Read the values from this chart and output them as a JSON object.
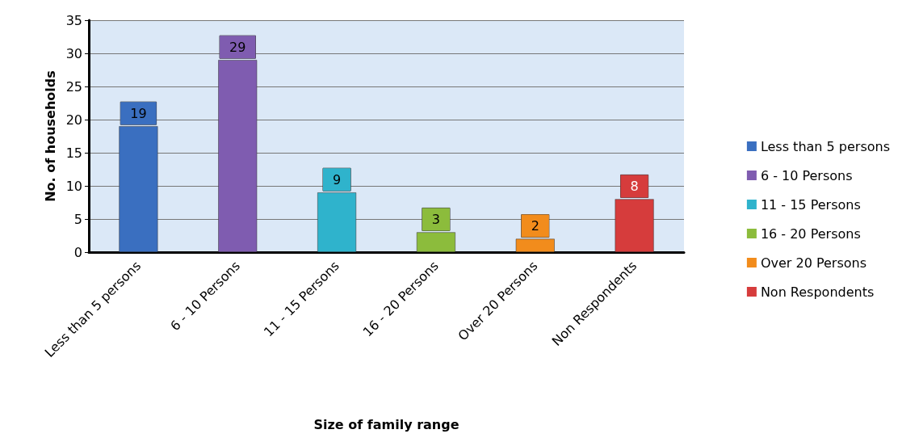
{
  "chart_data": {
    "type": "bar",
    "xlabel": "Size of family range",
    "ylabel": "No. of households",
    "categories": [
      "Less than 5 persons",
      "6 - 10 Persons",
      "11 - 15 Persons",
      "16 - 20 Persons",
      "Over 20 Persons",
      "Non Respondents"
    ],
    "series": [
      {
        "name": "Less than 5 persons",
        "color": "#3a6fc0",
        "values": [
          19,
          null,
          null,
          null,
          null,
          null
        ]
      },
      {
        "name": "6 - 10 Persons",
        "color": "#7f5cb0",
        "values": [
          null,
          29,
          null,
          null,
          null,
          null
        ]
      },
      {
        "name": "11 - 15 Persons",
        "color": "#2fb3cc",
        "values": [
          null,
          null,
          9,
          null,
          null,
          null
        ]
      },
      {
        "name": "16 - 20 Persons",
        "color": "#8cbc3c",
        "values": [
          null,
          null,
          null,
          3,
          null,
          null
        ]
      },
      {
        "name": "Over 20 Persons",
        "color": "#f28c1c",
        "values": [
          null,
          null,
          null,
          null,
          2,
          null
        ]
      },
      {
        "name": "Non Respondents",
        "color": "#d63c3c",
        "values": [
          null,
          null,
          null,
          null,
          null,
          8
        ]
      }
    ],
    "ylim": [
      0,
      35
    ],
    "yticks": [
      0,
      5,
      10,
      15,
      20,
      25,
      30,
      35
    ],
    "grid": "y",
    "legend": "right",
    "data_labels": true
  }
}
